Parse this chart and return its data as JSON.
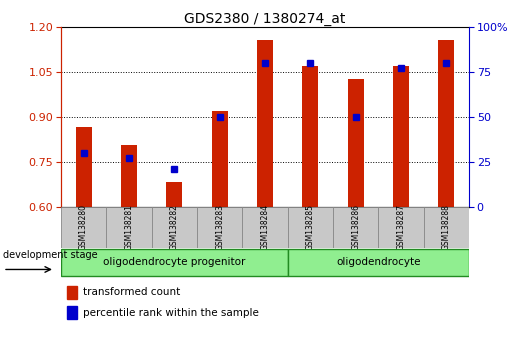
{
  "title": "GDS2380 / 1380274_at",
  "samples": [
    "GSM138280",
    "GSM138281",
    "GSM138282",
    "GSM138283",
    "GSM138284",
    "GSM138285",
    "GSM138286",
    "GSM138287",
    "GSM138288"
  ],
  "transformed_count": [
    0.865,
    0.805,
    0.685,
    0.92,
    1.155,
    1.07,
    1.025,
    1.07,
    1.155
  ],
  "percentile_rank": [
    30,
    27,
    21,
    50,
    80,
    80,
    50,
    77,
    80
  ],
  "ylim_left": [
    0.6,
    1.2
  ],
  "ylim_right": [
    0,
    100
  ],
  "yticks_left": [
    0.6,
    0.75,
    0.9,
    1.05,
    1.2
  ],
  "yticks_right": [
    0,
    25,
    50,
    75,
    100
  ],
  "bar_color": "#CC2200",
  "dot_color": "#0000CC",
  "groups": [
    {
      "label": "oligodendrocyte progenitor",
      "start": 0,
      "end": 4,
      "color": "#90EE90"
    },
    {
      "label": "oligodendrocyte",
      "start": 5,
      "end": 8,
      "color": "#90EE90"
    }
  ],
  "group_border_color": "#228B22",
  "sample_box_color": "#C8C8C8",
  "legend_red_label": "transformed count",
  "legend_blue_label": "percentile rank within the sample",
  "dev_stage_label": "development stage"
}
